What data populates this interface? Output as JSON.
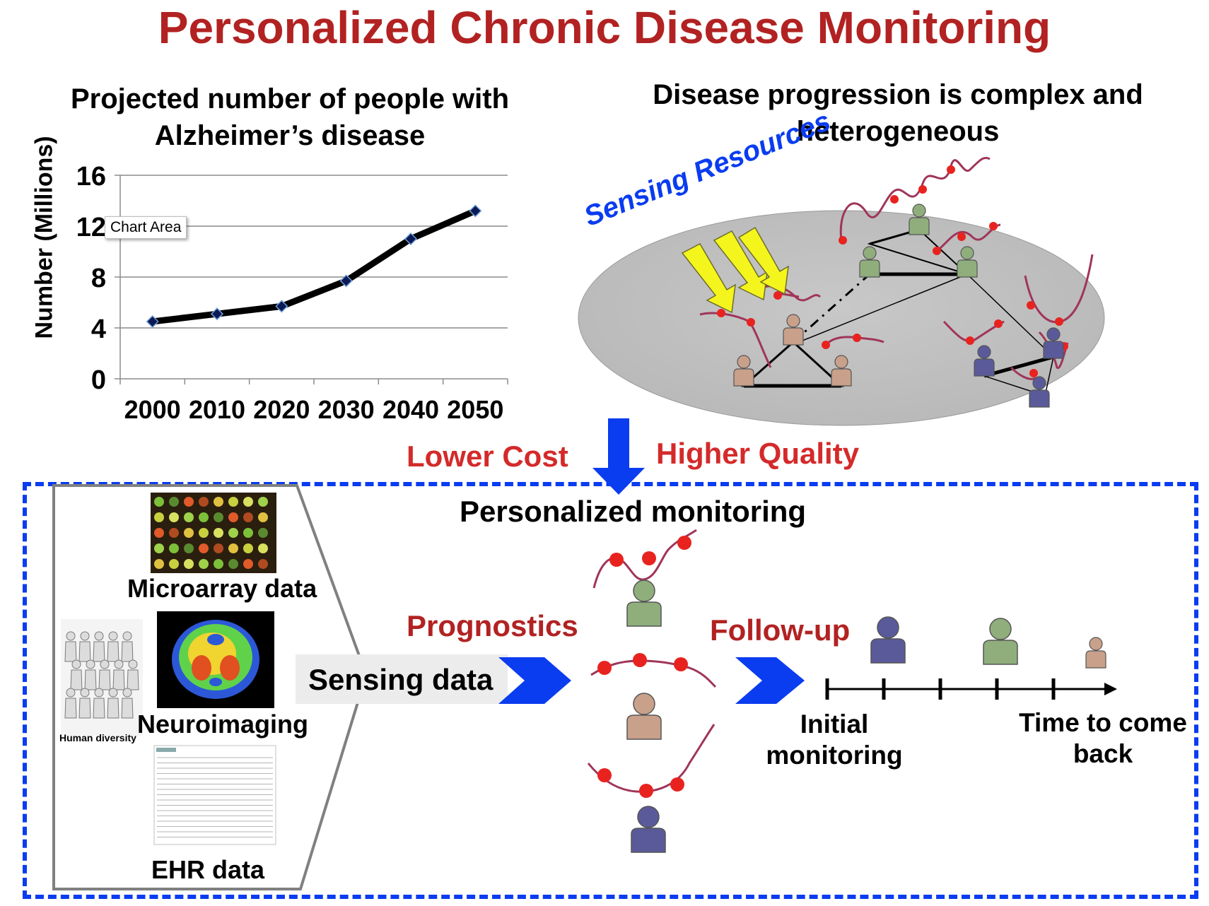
{
  "title": "Personalized Chronic Disease Monitoring",
  "colors": {
    "title": "#b22222",
    "red_label": "#d42a2a",
    "blue": "#0a3cf0",
    "curve": "#a0355a",
    "dot": "#e8231f"
  },
  "chart": {
    "title_line1": "Projected number of people with",
    "title_line2": "Alzheimer’s disease",
    "ylabel": "Number (Millions)",
    "tooltip": "Chart Area"
  },
  "chart_data": {
    "type": "line",
    "title": "Projected number of people with Alzheimer’s disease",
    "xlabel": "",
    "ylabel": "Number (Millions)",
    "x": [
      2000,
      2010,
      2020,
      2030,
      2040,
      2050
    ],
    "y": [
      4.5,
      5.1,
      5.7,
      7.7,
      11.0,
      13.2
    ],
    "xlim": [
      1995,
      2055
    ],
    "ylim": [
      0,
      16
    ],
    "yticks": [
      0,
      4,
      8,
      12,
      16
    ],
    "xticks": [
      "2000",
      "2010",
      "2020",
      "2030",
      "2040",
      "2050"
    ],
    "grid": true,
    "legend": "none"
  },
  "progression": {
    "title_line1": "Disease progression is complex and",
    "title_line2": "heterogeneous",
    "sensing_label": "Sensing Resources"
  },
  "benefits": {
    "lower_cost": "Lower Cost",
    "higher_quality": "Higher Quality"
  },
  "monitoring": {
    "title": "Personalized monitoring",
    "prognostics": "Prognostics",
    "follow_up": "Follow-up",
    "sensing_data": "Sensing data",
    "initial_line1": "Initial",
    "initial_line2": "monitoring",
    "come_back_line1": "Time to come",
    "come_back_line2": "back"
  },
  "sources": {
    "microarray": "Microarray data",
    "neuroimaging": "Neuroimaging",
    "ehr": "EHR data",
    "human_diversity": "Human diversity"
  },
  "icons": {
    "person_green": "#8fae7c",
    "person_tan": "#c9a08a",
    "person_purple": "#5a5a9a"
  }
}
